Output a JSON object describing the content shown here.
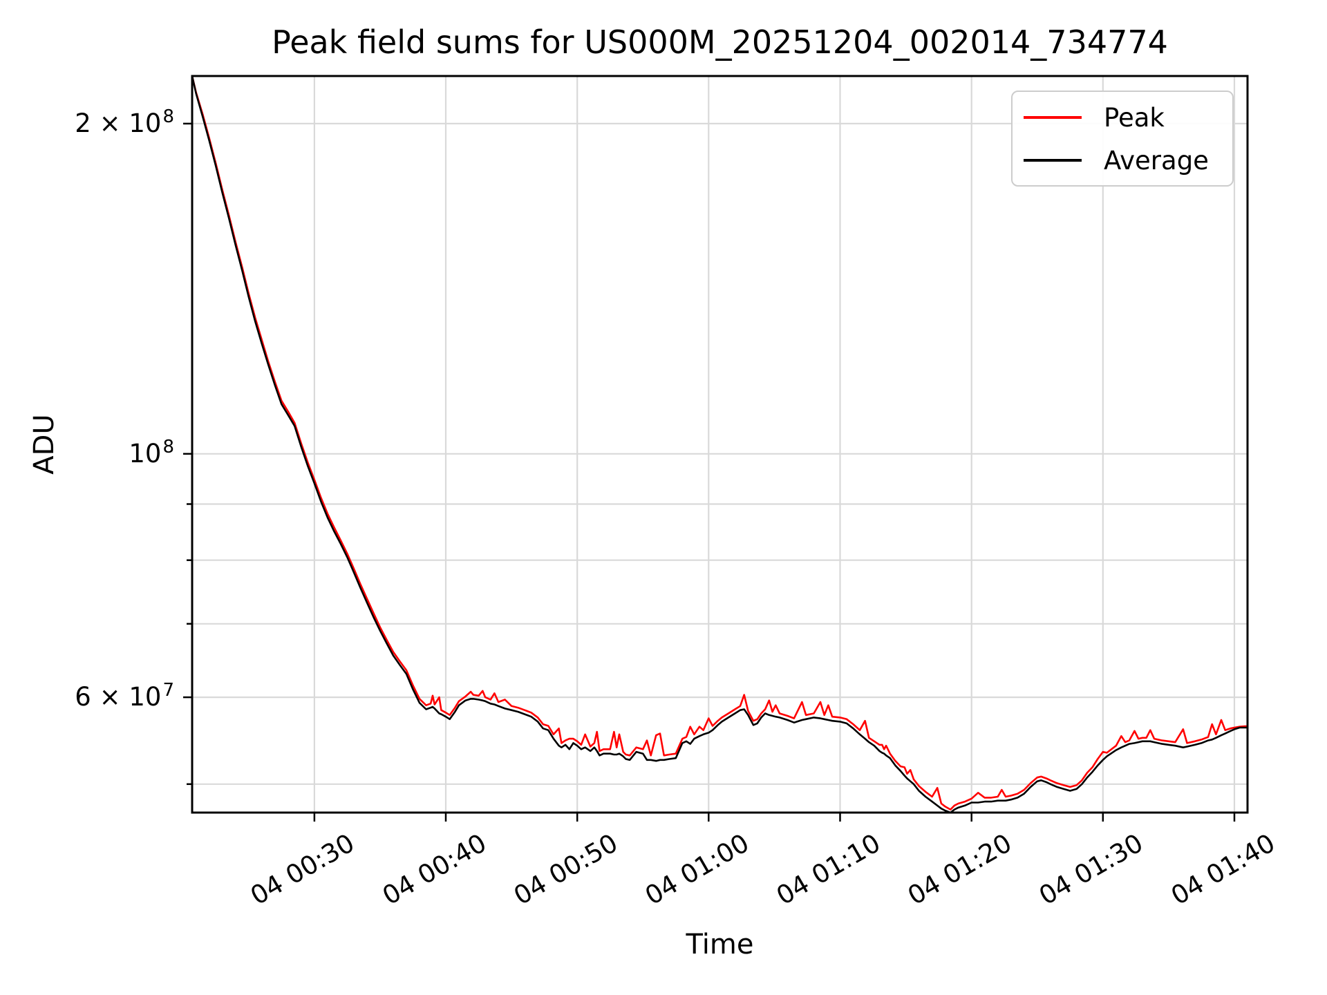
{
  "chart_data": {
    "type": "line",
    "title": "Peak field sums for US000M_20251204_002014_734774",
    "xlabel": "Time",
    "ylabel": "ADU",
    "yscale": "log",
    "grid": true,
    "legend_position": "upper right",
    "background_color": "#ffffff",
    "grid_color": "#d9d9d9",
    "spine_color": "#000000",
    "x_unit": "minutes after 04 00:00",
    "xlim": [
      20.7,
      101.0
    ],
    "ylim": [
      47100000.0,
      221000000.0
    ],
    "x_ticks": [
      {
        "label": "04 00:30",
        "minutes": 30
      },
      {
        "label": "04 00:40",
        "minutes": 40
      },
      {
        "label": "04 00:50",
        "minutes": 50
      },
      {
        "label": "04 01:00",
        "minutes": 60
      },
      {
        "label": "04 01:10",
        "minutes": 70
      },
      {
        "label": "04 01:20",
        "minutes": 80
      },
      {
        "label": "04 01:30",
        "minutes": 90
      },
      {
        "label": "04 01:40",
        "minutes": 100
      }
    ],
    "y_major_ticks": [
      {
        "main": "2 × 10",
        "sup": "8",
        "value": 200000000.0
      },
      {
        "main": "10",
        "sup": "8",
        "value": 100000000.0
      },
      {
        "main": "6 × 10",
        "sup": "7",
        "value": 60000000.0
      }
    ],
    "y_minor_ticks": [
      50000000.0,
      70000000.0,
      80000000.0,
      90000000.0
    ],
    "t_minutes": [
      20.7,
      21.0,
      21.5,
      22.0,
      22.5,
      23.0,
      23.5,
      24.0,
      24.5,
      25.0,
      25.5,
      26.0,
      26.5,
      27.0,
      27.5,
      28.0,
      28.5,
      29.0,
      29.5,
      30.0,
      30.5,
      31.0,
      31.5,
      32.0,
      32.5,
      33.0,
      33.5,
      34.0,
      34.5,
      35.0,
      35.5,
      36.0,
      36.5,
      37.0,
      37.5,
      38.0,
      38.5,
      38.85,
      39.0,
      39.15,
      39.5,
      39.65,
      40.0,
      40.3,
      40.7,
      41.0,
      41.5,
      41.9,
      42.1,
      42.5,
      42.8,
      43.0,
      43.4,
      43.7,
      44.0,
      44.5,
      45.0,
      45.5,
      46.0,
      46.5,
      47.0,
      47.4,
      47.8,
      48.2,
      48.6,
      48.8,
      49.1,
      49.4,
      49.7,
      50.0,
      50.3,
      50.6,
      51.0,
      51.3,
      51.5,
      51.7,
      52.0,
      52.5,
      52.8,
      53.0,
      53.2,
      53.5,
      53.7,
      54.0,
      54.5,
      55.0,
      55.3,
      55.6,
      56.0,
      56.3,
      56.6,
      57.0,
      57.5,
      58.0,
      58.3,
      58.6,
      58.9,
      59.3,
      59.6,
      60.0,
      60.3,
      60.7,
      61.0,
      61.5,
      62.0,
      62.4,
      62.7,
      63.0,
      63.4,
      63.7,
      64.0,
      64.3,
      64.6,
      64.85,
      65.1,
      65.4,
      66.0,
      66.5,
      67.1,
      67.4,
      68.0,
      68.5,
      68.8,
      69.1,
      69.4,
      70.0,
      70.5,
      71.0,
      71.5,
      71.9,
      72.2,
      72.6,
      73.0,
      73.2,
      73.35,
      73.5,
      73.8,
      74.2,
      74.6,
      74.9,
      75.1,
      75.35,
      75.6,
      76.0,
      76.5,
      77.0,
      77.4,
      77.7,
      78.0,
      78.4,
      78.7,
      79.0,
      79.5,
      80.0,
      80.5,
      81.0,
      81.5,
      82.0,
      82.3,
      82.6,
      83.0,
      83.5,
      84.0,
      84.5,
      85.0,
      85.3,
      85.7,
      86.0,
      86.5,
      87.0,
      87.5,
      88.0,
      88.4,
      88.8,
      89.2,
      89.6,
      90.0,
      90.3,
      91.0,
      91.4,
      91.7,
      92.0,
      92.4,
      92.7,
      93.0,
      93.3,
      93.6,
      93.9,
      94.5,
      95.0,
      95.5,
      96.1,
      96.4,
      97.0,
      97.5,
      98.0,
      98.3,
      98.6,
      99.0,
      99.3,
      99.7,
      100.0,
      100.4,
      100.8,
      101.0
    ],
    "series": [
      {
        "name": "Peak",
        "color": "#ff0000",
        "values": [
          221000000.0,
          213500000.0,
          204000000.0,
          194000000.0,
          184000000.0,
          174000000.0,
          165000000.0,
          156000000.0,
          148000000.0,
          140000000.0,
          133000000.0,
          127000000.0,
          121300000.0,
          116300000.0,
          111800000.0,
          109300000.0,
          106700000.0,
          102200000.0,
          98200000.0,
          94700000.0,
          91200000.0,
          88200000.0,
          85700000.0,
          83400000.0,
          81100000.0,
          78600000.0,
          76100000.0,
          73800000.0,
          71600000.0,
          69500000.0,
          67700000.0,
          66000000.0,
          64700000.0,
          63500000.0,
          61500000.0,
          59800000.0,
          59000000.0,
          59200000.0,
          60200000.0,
          59100000.0,
          60000000.0,
          58400000.0,
          58100000.0,
          57800000.0,
          58700000.0,
          59500000.0,
          60100000.0,
          60700000.0,
          60300000.0,
          60200000.0,
          60800000.0,
          60000000.0,
          59700000.0,
          60500000.0,
          59400000.0,
          59700000.0,
          58900000.0,
          58700000.0,
          58400000.0,
          58100000.0,
          57500000.0,
          56700000.0,
          56500000.0,
          55500000.0,
          56200000.0,
          54500000.0,
          54800000.0,
          55000000.0,
          55000000.0,
          54700000.0,
          54300000.0,
          55500000.0,
          54100000.0,
          54500000.0,
          55800000.0,
          53600000.0,
          53800000.0,
          53800000.0,
          55800000.0,
          54000000.0,
          55500000.0,
          53500000.0,
          53200000.0,
          53100000.0,
          54000000.0,
          53800000.0,
          54800000.0,
          53100000.0,
          55400000.0,
          55600000.0,
          53100000.0,
          53200000.0,
          53300000.0,
          55000000.0,
          55200000.0,
          56400000.0,
          55500000.0,
          56400000.0,
          56000000.0,
          57400000.0,
          56500000.0,
          57100000.0,
          57500000.0,
          58000000.0,
          58500000.0,
          58900000.0,
          60300000.0,
          58300000.0,
          57100000.0,
          57300000.0,
          58000000.0,
          58500000.0,
          59600000.0,
          58200000.0,
          59000000.0,
          58000000.0,
          57700000.0,
          57400000.0,
          59400000.0,
          57800000.0,
          58000000.0,
          59400000.0,
          57800000.0,
          59000000.0,
          57600000.0,
          57500000.0,
          57300000.0,
          56700000.0,
          56000000.0,
          57100000.0,
          55100000.0,
          54700000.0,
          54300000.0,
          54300000.0,
          53800000.0,
          54200000.0,
          53300000.0,
          52500000.0,
          51900000.0,
          51800000.0,
          51100000.0,
          51500000.0,
          50500000.0,
          49800000.0,
          49200000.0,
          48700000.0,
          49600000.0,
          48000000.0,
          47700000.0,
          47400000.0,
          47800000.0,
          48000000.0,
          48200000.0,
          48500000.0,
          49100000.0,
          48600000.0,
          48600000.0,
          48700000.0,
          49400000.0,
          48700000.0,
          48800000.0,
          49000000.0,
          49400000.0,
          50100000.0,
          50700000.0,
          50800000.0,
          50600000.0,
          50400000.0,
          50100000.0,
          49900000.0,
          49700000.0,
          49900000.0,
          50400000.0,
          51200000.0,
          51800000.0,
          52700000.0,
          53500000.0,
          53400000.0,
          54200000.0,
          55300000.0,
          54600000.0,
          54800000.0,
          55900000.0,
          55000000.0,
          55100000.0,
          55100000.0,
          56000000.0,
          55000000.0,
          54800000.0,
          54700000.0,
          54600000.0,
          56100000.0,
          54500000.0,
          54700000.0,
          54900000.0,
          55200000.0,
          56700000.0,
          55500000.0,
          57200000.0,
          56000000.0,
          56200000.0,
          56300000.0,
          56400000.0,
          56450000.0,
          56450000.0
        ]
      },
      {
        "name": "Average",
        "color": "#000000",
        "values": [
          221000000.0,
          213000000.0,
          203000000.0,
          193000000.0,
          183000000.0,
          173000000.0,
          164000000.0,
          155000000.0,
          147000000.0,
          139000000.0,
          132000000.0,
          126000000.0,
          120500000.0,
          115500000.0,
          111000000.0,
          108500000.0,
          106000000.0,
          101500000.0,
          97500000.0,
          94000000.0,
          90500000.0,
          87500000.0,
          85000000.0,
          82800000.0,
          80500000.0,
          78000000.0,
          75500000.0,
          73200000.0,
          71000000.0,
          69000000.0,
          67200000.0,
          65500000.0,
          64200000.0,
          63000000.0,
          61000000.0,
          59300000.0,
          58500000.0,
          58700000.0,
          58800000.0,
          58600000.0,
          58000000.0,
          57900000.0,
          57600000.0,
          57300000.0,
          58200000.0,
          59000000.0,
          59600000.0,
          59800000.0,
          59800000.0,
          59700000.0,
          59600000.0,
          59500000.0,
          59200000.0,
          59100000.0,
          58900000.0,
          58600000.0,
          58400000.0,
          58200000.0,
          57900000.0,
          57600000.0,
          57000000.0,
          56200000.0,
          56000000.0,
          55000000.0,
          54200000.0,
          54000000.0,
          54300000.0,
          53800000.0,
          54500000.0,
          54200000.0,
          53800000.0,
          54000000.0,
          53600000.0,
          54000000.0,
          53600000.0,
          53100000.0,
          53300000.0,
          53300000.0,
          53200000.0,
          53200000.0,
          53300000.0,
          53000000.0,
          52700000.0,
          52600000.0,
          53500000.0,
          53300000.0,
          52600000.0,
          52600000.0,
          52500000.0,
          52600000.0,
          52600000.0,
          52700000.0,
          52800000.0,
          54500000.0,
          54700000.0,
          54400000.0,
          55000000.0,
          55300000.0,
          55500000.0,
          55700000.0,
          56000000.0,
          56600000.0,
          57000000.0,
          57500000.0,
          58000000.0,
          58400000.0,
          58500000.0,
          57800000.0,
          56600000.0,
          56800000.0,
          57500000.0,
          58000000.0,
          57800000.0,
          57700000.0,
          57600000.0,
          57500000.0,
          57200000.0,
          56900000.0,
          57200000.0,
          57300000.0,
          57500000.0,
          57400000.0,
          57300000.0,
          57200000.0,
          57100000.0,
          57000000.0,
          56800000.0,
          56200000.0,
          55500000.0,
          55000000.0,
          54600000.0,
          54200000.0,
          53600000.0,
          53400000.0,
          53300000.0,
          53100000.0,
          52800000.0,
          52000000.0,
          51400000.0,
          50900000.0,
          50600000.0,
          50300000.0,
          50000000.0,
          49300000.0,
          48700000.0,
          48200000.0,
          47800000.0,
          47500000.0,
          47300000.0,
          47100000.0,
          47400000.0,
          47600000.0,
          47800000.0,
          48100000.0,
          48100000.0,
          48200000.0,
          48200000.0,
          48300000.0,
          48300000.0,
          48300000.0,
          48400000.0,
          48600000.0,
          49000000.0,
          49700000.0,
          50300000.0,
          50400000.0,
          50200000.0,
          50000000.0,
          49700000.0,
          49500000.0,
          49300000.0,
          49500000.0,
          50000000.0,
          50700000.0,
          51300000.0,
          52000000.0,
          52600000.0,
          53000000.0,
          53700000.0,
          54000000.0,
          54200000.0,
          54400000.0,
          54500000.0,
          54600000.0,
          54700000.0,
          54700000.0,
          54700000.0,
          54600000.0,
          54400000.0,
          54300000.0,
          54200000.0,
          54000000.0,
          54100000.0,
          54300000.0,
          54500000.0,
          54800000.0,
          54900000.0,
          55100000.0,
          55400000.0,
          55600000.0,
          55900000.0,
          56100000.0,
          56300000.0,
          56300000.0,
          56300000.0
        ]
      }
    ]
  }
}
